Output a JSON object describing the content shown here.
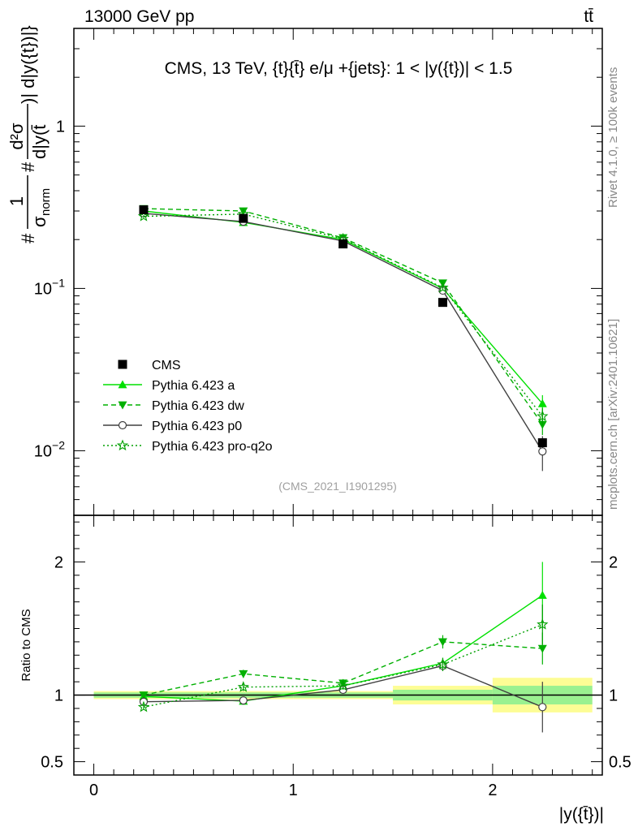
{
  "header": {
    "left": "13000 GeV pp",
    "right": "tt̄"
  },
  "side_labels": {
    "rivet": "Rivet 4.1.0, ≥ 100k events",
    "mcplots": "mcplots.cern.ch [arXiv:2401.10621]"
  },
  "chart_data": {
    "type": "line",
    "title": "CMS, 13 TeV, {t}{t̄} e/μ +{jets}: 1 < |y({t})| < 1.5",
    "analysis_id": "(CMS_2021_I1901295)",
    "xlabel": "|y({t̄})|",
    "ylabel_parts": {
      "hash1": "#",
      "frac1_num": "1",
      "frac1_den": "σ",
      "frac1_den_sub": "norm",
      "hash2": "#",
      "frac2_num": "d²σ",
      "frac2_den": "d|y(t̄",
      "bracket": ")| d|y({t})|}"
    },
    "ratio_ylabel": "Ratio to CMS",
    "x_bins": [
      [
        0,
        0.5
      ],
      [
        0.5,
        1.0
      ],
      [
        1.0,
        1.5
      ],
      [
        1.5,
        2.0
      ],
      [
        2.0,
        2.5
      ]
    ],
    "x": [
      0.25,
      0.75,
      1.25,
      1.75,
      2.25
    ],
    "xlim": [
      -0.1,
      2.55
    ],
    "ylim_main": [
      0.004,
      4
    ],
    "ylim_ratio": [
      0.4,
      2.35
    ],
    "x_ticks": [
      {
        "v": 0,
        "label": "0"
      },
      {
        "v": 1,
        "label": "1"
      },
      {
        "v": 2,
        "label": "2"
      }
    ],
    "y_ticks_main": [
      {
        "v": 1,
        "base": "1",
        "exp": ""
      },
      {
        "v": 0.1,
        "base": "10",
        "exp": "−1"
      },
      {
        "v": 0.01,
        "base": "10",
        "exp": "−2"
      }
    ],
    "y_ticks_ratio": [
      {
        "v": 2,
        "label": "2"
      },
      {
        "v": 1,
        "label": "1"
      },
      {
        "v": 0.5,
        "label": "0.5"
      }
    ],
    "data": {
      "name": "CMS",
      "values": [
        0.305,
        0.27,
        0.188,
        0.082,
        0.0112
      ],
      "err": [
        0.01,
        0.009,
        0.006,
        0.003,
        0.0007
      ],
      "ratio_band_inner": [
        0.02,
        0.02,
        0.02,
        0.04,
        0.07
      ],
      "ratio_band_outer": [
        0.03,
        0.03,
        0.03,
        0.07,
        0.13
      ]
    },
    "series": [
      {
        "name": "Pythia 6.423 a",
        "color": "#00e000",
        "dash": "",
        "marker": "triangle-up",
        "values": [
          0.3,
          0.255,
          0.2,
          0.1,
          0.0195
        ],
        "err": [
          0.005,
          0.004,
          0.003,
          0.002,
          0.0025
        ],
        "ratio": [
          0.99,
          0.955,
          1.07,
          1.24,
          1.75
        ],
        "ratio_err": [
          0.02,
          0.02,
          0.03,
          0.04,
          0.25
        ]
      },
      {
        "name": "Pythia 6.423 dw",
        "color": "#00b000",
        "dash": "6,4",
        "marker": "triangle-down",
        "values": [
          0.31,
          0.3,
          0.205,
          0.108,
          0.0145
        ],
        "err": [
          0.005,
          0.005,
          0.004,
          0.003,
          0.002
        ],
        "ratio": [
          1.0,
          1.16,
          1.09,
          1.4,
          1.35
        ],
        "ratio_err": [
          0.02,
          0.03,
          0.03,
          0.05,
          0.12
        ]
      },
      {
        "name": "Pythia 6.423 p0",
        "color": "#404040",
        "dash": "",
        "marker": "circle-open",
        "values": [
          0.29,
          0.258,
          0.196,
          0.097,
          0.0099
        ],
        "err": [
          0.005,
          0.004,
          0.003,
          0.003,
          0.0024
        ],
        "ratio": [
          0.95,
          0.96,
          1.04,
          1.22,
          0.91
        ],
        "ratio_err": [
          0.02,
          0.02,
          0.03,
          0.04,
          0.19
        ]
      },
      {
        "name": "Pythia 6.423 pro-q2o",
        "color": "#00a000",
        "dash": "2,3",
        "marker": "star",
        "values": [
          0.278,
          0.287,
          0.202,
          0.101,
          0.0163
        ],
        "err": [
          0.005,
          0.005,
          0.004,
          0.003,
          0.002
        ],
        "ratio": [
          0.91,
          1.06,
          1.07,
          1.23,
          1.53
        ],
        "ratio_err": [
          0.02,
          0.03,
          0.03,
          0.05,
          0.15
        ]
      }
    ]
  }
}
